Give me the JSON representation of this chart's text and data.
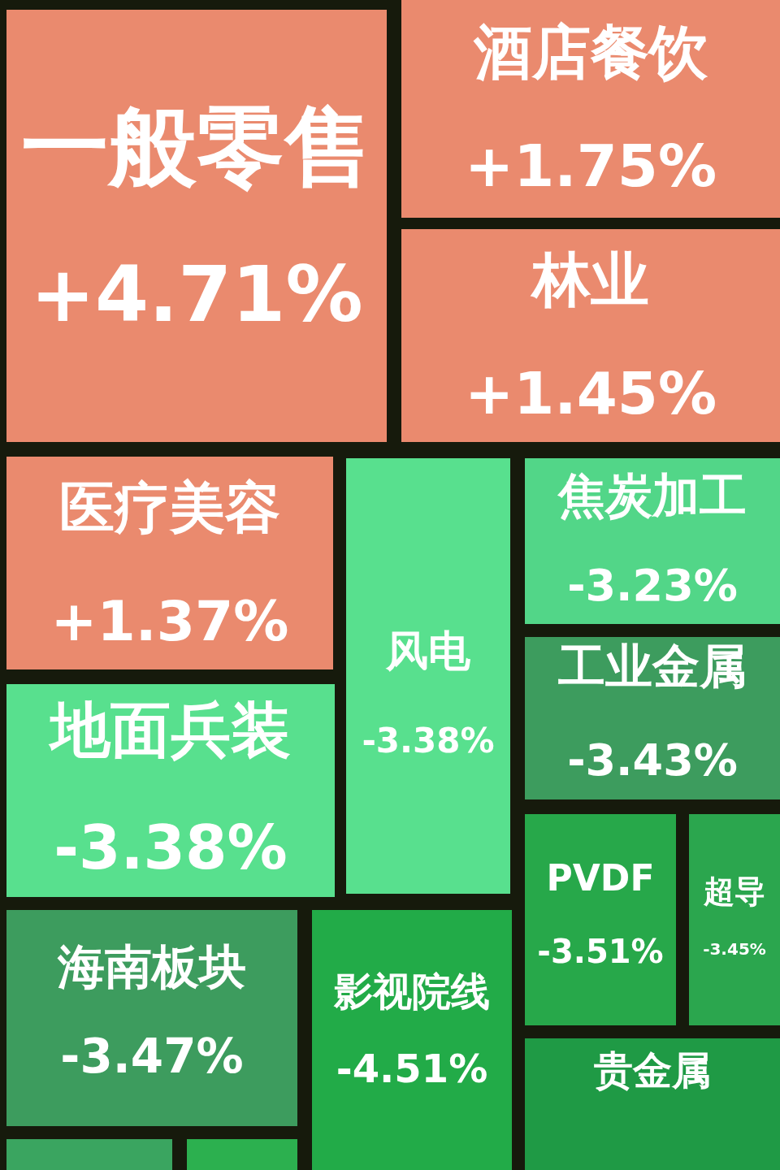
{
  "chart_data": {
    "type": "other",
    "categories": [
      "一般零售",
      "酒店餐饮",
      "林业",
      "医疗美容",
      "风电",
      "焦炭加工",
      "地面兵装",
      "工业金属",
      "PVDF",
      "超导",
      "海南板块",
      "影视院线",
      "贵金属",
      null,
      null
    ],
    "values": [
      4.71,
      1.75,
      1.45,
      1.37,
      -3.38,
      -3.23,
      -3.38,
      -3.43,
      -3.51,
      -3.45,
      -3.47,
      -4.51,
      null,
      null,
      null
    ],
    "value_labels": [
      "+4.71%",
      "+1.75%",
      "+1.45%",
      "+1.37%",
      "-3.38%",
      "-3.23%",
      "-3.38%",
      "-3.43%",
      "-3.51%",
      "-3.45%",
      "-3.47%",
      "-4.51%",
      null,
      null,
      null
    ],
    "colors": [
      "#ea8a6e",
      "#ea8a6e",
      "#ea8a6e",
      "#ea8a6e",
      "#58e08e",
      "#52d688",
      "#58e08e",
      "#3d9c5e",
      "#27a84a",
      "#2ba64e",
      "#3d9c5e",
      "#22ab48",
      "#1f9a45",
      "#3aa560",
      "#2cb04f"
    ]
  }
}
